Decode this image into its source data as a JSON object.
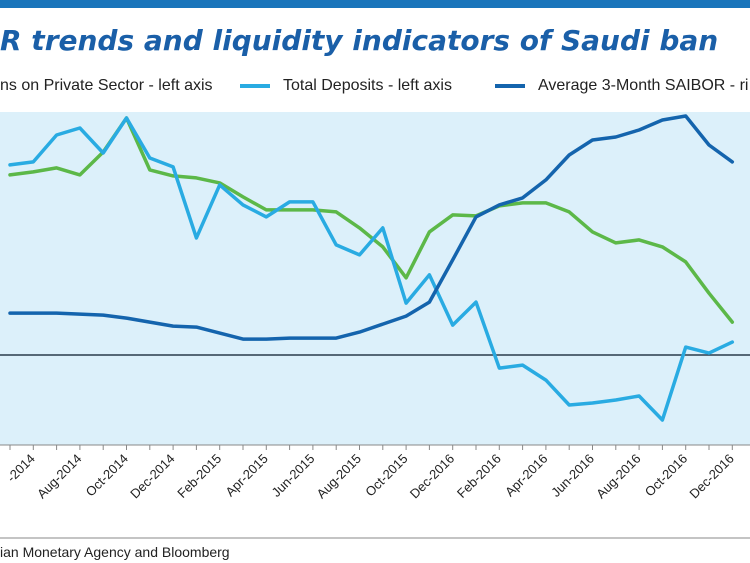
{
  "chart_data": {
    "type": "line",
    "title": "R trends and liquidity indicators of Saudi ban",
    "source": "ian Monetary Agency and Bloomberg",
    "categories": [
      null,
      "-2014",
      null,
      "Aug-2014",
      null,
      "Oct-2014",
      null,
      "Dec-2014",
      null,
      "Feb-2015",
      null,
      "Apr-2015",
      null,
      "Jun-2015",
      null,
      "Aug-2015",
      null,
      "Oct-2015",
      null,
      "Dec-2016",
      null,
      "Feb-2016",
      null,
      "Apr-2016",
      null,
      "Jun-2016",
      null,
      "Aug-2016",
      null,
      "Oct-2016",
      null,
      "Dec-2016"
    ],
    "ylim": [
      0,
      100
    ],
    "series": [
      {
        "name": "ns on Private Sector - left axis",
        "color": "#5cb848",
        "values": [
          81.1,
          82.0,
          83.2,
          81.1,
          88.0,
          98.2,
          82.6,
          80.8,
          80.2,
          78.7,
          74.5,
          70.6,
          70.6,
          70.6,
          70.0,
          65.2,
          59.5,
          50.2,
          64.0,
          69.1,
          68.8,
          71.8,
          72.7,
          72.7,
          70.0,
          64.0,
          60.7,
          61.6,
          59.5,
          55.0,
          45.6,
          36.9
        ]
      },
      {
        "name": "Total Deposits - left axis",
        "color": "#29abe2",
        "values": [
          84.1,
          85.0,
          93.1,
          95.2,
          87.7,
          98.2,
          86.2,
          83.5,
          62.2,
          78.1,
          72.1,
          68.5,
          73.0,
          73.0,
          60.1,
          57.1,
          65.2,
          42.6,
          51.1,
          36.0,
          42.9,
          23.1,
          24.0,
          19.5,
          12.0,
          12.6,
          13.5,
          14.7,
          7.5,
          29.4,
          27.6,
          30.9
        ]
      },
      {
        "name": "Average 3-Month SAIBOR - ri",
        "color": "#1464ad",
        "values": [
          39.6,
          39.6,
          39.6,
          39.3,
          39.0,
          38.1,
          36.9,
          35.7,
          35.4,
          33.6,
          31.8,
          31.8,
          32.1,
          32.1,
          32.1,
          33.9,
          36.3,
          38.7,
          42.9,
          55.6,
          68.5,
          72.1,
          74.2,
          79.6,
          87.1,
          91.6,
          92.5,
          94.6,
          97.6,
          98.8,
          90.1,
          85.0
        ]
      }
    ]
  }
}
